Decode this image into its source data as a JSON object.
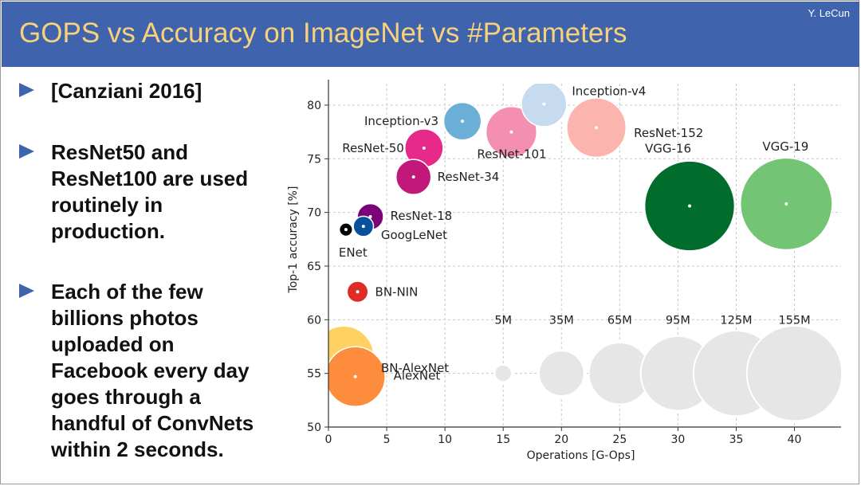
{
  "slide": {
    "title": "GOPS vs Accuracy on ImageNet vs #Parameters",
    "author": "Y. LeCun",
    "colors": {
      "title_bar": "#3f63ad",
      "title_text": "#f7d27a",
      "bullet_arrow": "#3f63ad"
    }
  },
  "bullets": [
    {
      "text": "[Canziani 2016]"
    },
    {
      "text": "ResNet50 and\nResNet100 are used\nroutinely in\nproduction."
    },
    {
      "text": "Each of the few\nbillions photos\nuploaded on\nFacebook every day\ngoes through a\nhandful of ConvNets\nwithin 2 seconds."
    }
  ],
  "chart_data": {
    "type": "scatter",
    "xlabel": "Operations [G-Ops]",
    "ylabel": "Top-1 accuracy [%]",
    "xlim": [
      0,
      44
    ],
    "ylim": [
      50,
      82
    ],
    "xticks": [
      0,
      5,
      10,
      15,
      20,
      25,
      30,
      35,
      40
    ],
    "yticks": [
      50,
      55,
      60,
      65,
      70,
      75,
      80
    ],
    "grid": true,
    "points": [
      {
        "name": "Inception-v4",
        "x": 18.5,
        "y": 80.1,
        "params": 35,
        "color": "#c6dbef"
      },
      {
        "name": "Inception-v3",
        "x": 11.5,
        "y": 78.5,
        "params": 24,
        "color": "#6baed6"
      },
      {
        "name": "ResNet-152",
        "x": 23,
        "y": 77.9,
        "params": 60,
        "color": "#fbb4ae"
      },
      {
        "name": "ResNet-101",
        "x": 15.7,
        "y": 77.5,
        "params": 44,
        "color": "#f48fb1"
      },
      {
        "name": "ResNet-50",
        "x": 8.2,
        "y": 76,
        "params": 25,
        "color": "#e7298a"
      },
      {
        "name": "ResNet-34",
        "x": 7.3,
        "y": 73.3,
        "params": 21,
        "color": "#c2187a"
      },
      {
        "name": "VGG-16",
        "x": 31,
        "y": 70.6,
        "params": 138,
        "color": "#006d2c"
      },
      {
        "name": "VGG-19",
        "x": 39.3,
        "y": 70.8,
        "params": 144,
        "color": "#74c476"
      },
      {
        "name": "ResNet-18",
        "x": 3.6,
        "y": 69.6,
        "params": 11.7,
        "color": "#7a0177"
      },
      {
        "name": "GoogLeNet",
        "x": 3,
        "y": 68.7,
        "params": 7,
        "color": "#08519c"
      },
      {
        "name": "ENet",
        "x": 1.5,
        "y": 68.4,
        "params": 3,
        "color": "#000000"
      },
      {
        "name": "BN-NIN",
        "x": 2.5,
        "y": 62.6,
        "params": 7.6,
        "color": "#de2d26"
      },
      {
        "name": "BN-AlexNet",
        "x": 1.3,
        "y": 56.6,
        "params": 62,
        "color": "#fdd262"
      },
      {
        "name": "AlexNet",
        "x": 2.3,
        "y": 54.7,
        "params": 61,
        "color": "#fd8d3c"
      }
    ],
    "size_legend": {
      "y": 55,
      "color": "#e6e6e6",
      "items": [
        {
          "label": "5M",
          "x": 15,
          "params": 5
        },
        {
          "label": "35M",
          "x": 20,
          "params": 35
        },
        {
          "label": "65M",
          "x": 25,
          "params": 65
        },
        {
          "label": "95M",
          "x": 30,
          "params": 95
        },
        {
          "label": "125M",
          "x": 35,
          "params": 125
        },
        {
          "label": "155M",
          "x": 40,
          "params": 155
        }
      ]
    }
  }
}
